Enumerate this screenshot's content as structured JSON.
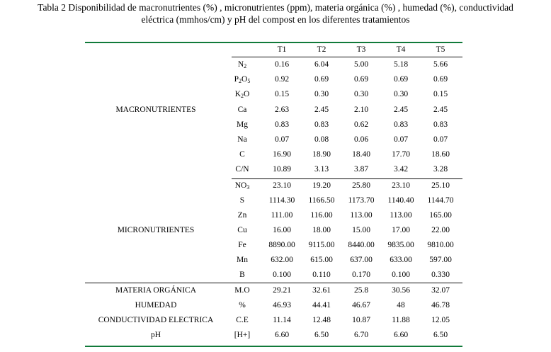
{
  "caption": {
    "line1": "Tabla 2 Disponibilidad de macronutrientes (%) , micronutrientes (ppm), materia orgánica (%) , humedad (%), conductividad",
    "line2": "eléctrica (mmhos/cm)  y pH  del compost en los diferentes tratamientos"
  },
  "headers": [
    "T1",
    "T2",
    "T3",
    "T4",
    "T5"
  ],
  "groups": {
    "macro": "MACRONUTRIENTES",
    "micro": "MICRONUTRIENTES",
    "mo": "MATERIA ORGÁNICA",
    "hum": "HUMEDAD",
    "ce": "CONDUCTIVIDAD ELECTRICA",
    "ph": "pH"
  },
  "rows": [
    {
      "p": "N",
      "s": "2",
      "v": [
        "0.16",
        "6.04",
        "5.00",
        "5.18",
        "5.66"
      ]
    },
    {
      "p": "P",
      "s": "2",
      "p2": "O",
      "s2": "5",
      "v": [
        "0.92",
        "0.69",
        "0.69",
        "0.69",
        "0.69"
      ]
    },
    {
      "p": "K",
      "s": "2",
      "p2": "O",
      "v": [
        "0.15",
        "0.30",
        "0.30",
        "0.30",
        "0.15"
      ]
    },
    {
      "p": "Ca",
      "v": [
        "2.63",
        "2.45",
        "2.10",
        "2.45",
        "2.45"
      ]
    },
    {
      "p": "Mg",
      "v": [
        "0.83",
        "0.83",
        "0.62",
        "0.83",
        "0.83"
      ]
    },
    {
      "p": "Na",
      "v": [
        "0.07",
        "0.08",
        "0.06",
        "0.07",
        "0.07"
      ]
    },
    {
      "p": "C",
      "v": [
        "16.90",
        "18.90",
        "18.40",
        "17.70",
        "18.60"
      ]
    },
    {
      "p": "C/N",
      "v": [
        "10.89",
        "3.13",
        "3.87",
        "3.42",
        "3.28"
      ]
    },
    {
      "p": "NO",
      "s": "3",
      "v": [
        "23.10",
        "19.20",
        "25.80",
        "23.10",
        "25.10"
      ]
    },
    {
      "p": "S",
      "v": [
        "1114.30",
        "1166.50",
        "1173.70",
        "1140.40",
        "1144.70"
      ]
    },
    {
      "p": "Zn",
      "v": [
        "111.00",
        "116.00",
        "113.00",
        "113.00",
        "165.00"
      ]
    },
    {
      "p": "Cu",
      "v": [
        "16.00",
        "18.00",
        "15.00",
        "17.00",
        "22.00"
      ]
    },
    {
      "p": "Fe",
      "v": [
        "8890.00",
        "9115.00",
        "8440.00",
        "9835.00",
        "9810.00"
      ]
    },
    {
      "p": "Mn",
      "v": [
        "632.00",
        "615.00",
        "637.00",
        "633.00",
        "597.00"
      ]
    },
    {
      "p": "B",
      "v": [
        "0.100",
        "0.110",
        "0.170",
        "0.100",
        "0.330"
      ]
    },
    {
      "p": "M.O",
      "v": [
        "29.21",
        "32.61",
        "25.8",
        "30.56",
        "32.07"
      ]
    },
    {
      "p": "%",
      "v": [
        "46.93",
        "44.41",
        "46.67",
        "48",
        "46.78"
      ]
    },
    {
      "p": "C.E",
      "v": [
        "11.14",
        "12.48",
        "10.87",
        "11.88",
        "12.05"
      ]
    },
    {
      "p": "[H+]",
      "v": [
        "6.60",
        "6.50",
        "6.70",
        "6.60",
        "6.50"
      ]
    }
  ]
}
